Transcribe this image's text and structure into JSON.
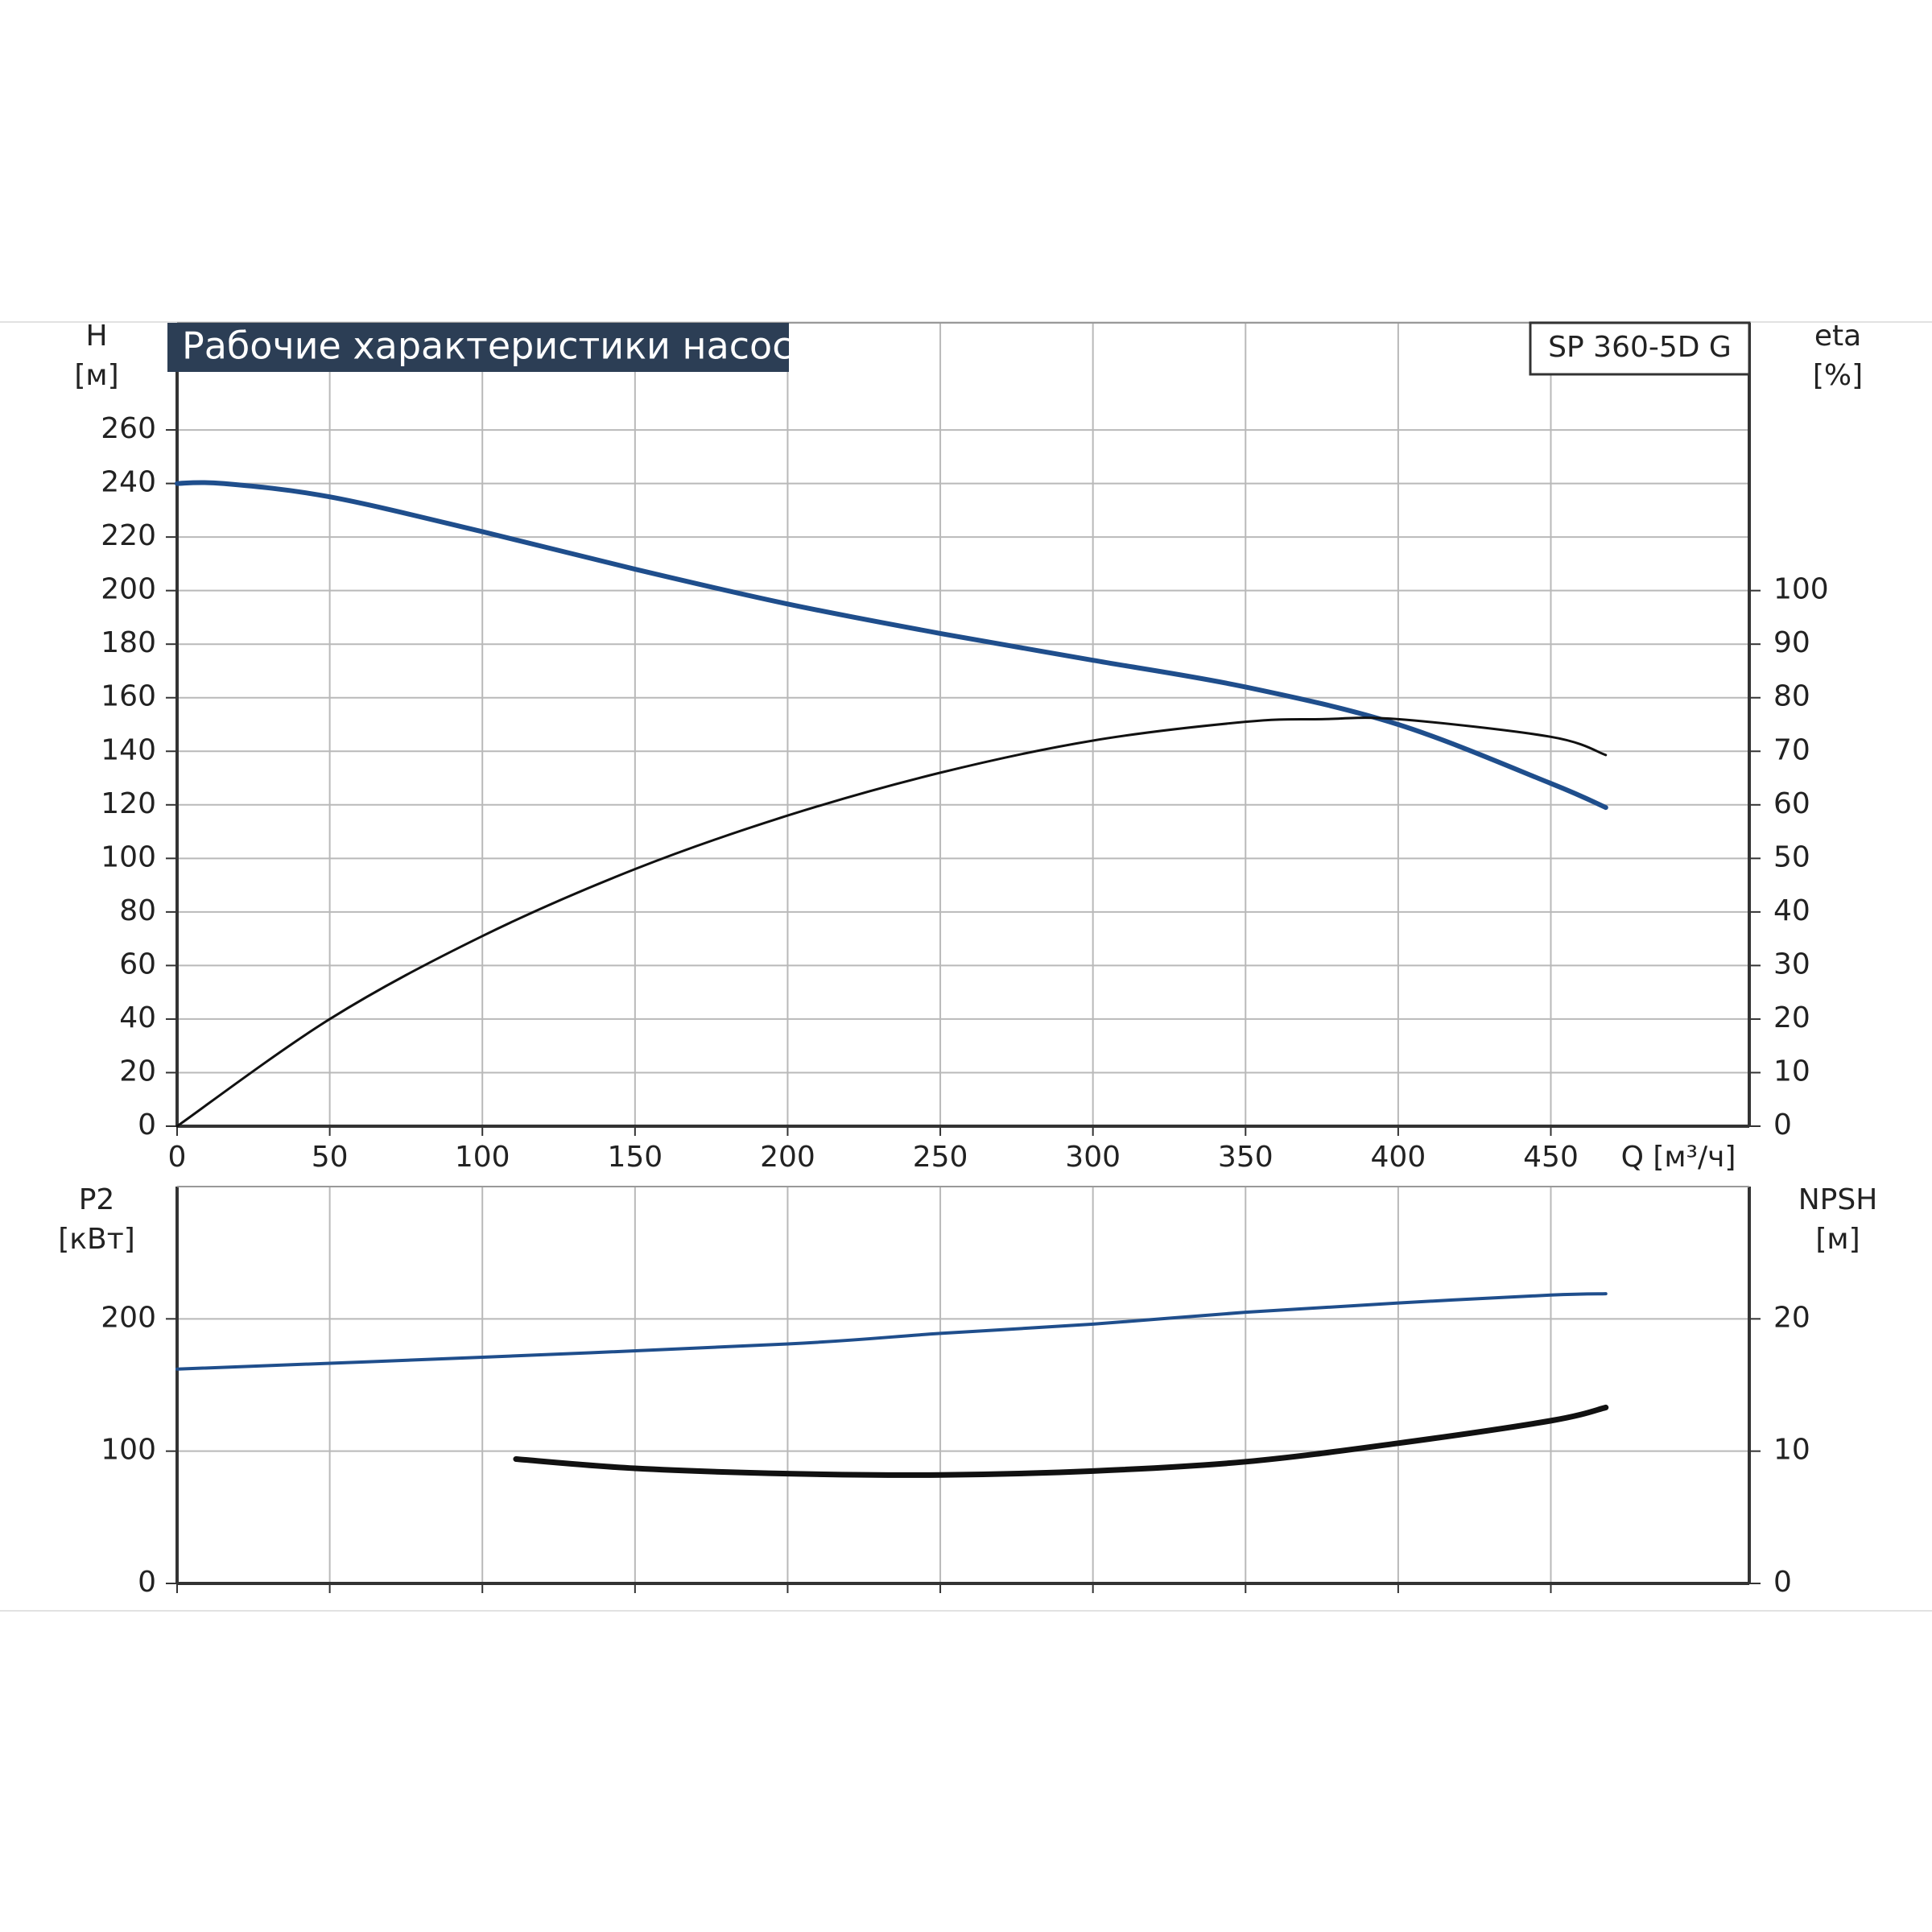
{
  "chart_data": [
    {
      "type": "line",
      "title": "Рабочие характеристики насоса",
      "model": "SP 360-5D G",
      "ylabel": "H",
      "yunit": "[м]",
      "y2label": "eta",
      "y2unit": "[%]",
      "xlabel": "Q [м³/ч]",
      "xlim": [
        0,
        515
      ],
      "xticks": [
        0,
        50,
        100,
        150,
        200,
        250,
        300,
        350,
        400,
        450
      ],
      "show_xtick_labels": true,
      "ylim": [
        0,
        300
      ],
      "yticks": [
        0,
        20,
        40,
        60,
        80,
        100,
        120,
        140,
        160,
        180,
        200,
        220,
        240,
        260
      ],
      "y2lim": [
        0,
        150
      ],
      "y2ticks": [
        0,
        10,
        20,
        30,
        40,
        50,
        60,
        70,
        80,
        90,
        100
      ],
      "grid": true,
      "series": [
        {
          "color": "#1f4e8c",
          "width": 6,
          "x": [
            0,
            15,
            50,
            100,
            150,
            200,
            250,
            300,
            350,
            400,
            450,
            468
          ],
          "values": [
            240,
            240,
            235,
            222,
            208,
            195,
            184,
            174,
            164,
            150,
            128,
            119
          ]
        },
        {
          "color": "#111111",
          "width": 3,
          "axis": "y2",
          "x": [
            0,
            50,
            100,
            150,
            200,
            250,
            300,
            350,
            375,
            400,
            450,
            468
          ],
          "values": [
            0,
            20,
            35.5,
            48,
            58,
            66,
            72,
            75.5,
            76,
            76,
            72.7,
            69.3
          ]
        }
      ]
    },
    {
      "type": "line",
      "ylabel": "P2",
      "yunit": "[кВт]",
      "y2label": "NPSH",
      "y2unit": "[м]",
      "xlim": [
        0,
        515
      ],
      "xticks": [
        0,
        50,
        100,
        150,
        200,
        250,
        300,
        350,
        400,
        450
      ],
      "show_xtick_labels": false,
      "ylim": [
        0,
        300
      ],
      "yticks": [
        0,
        100,
        200
      ],
      "y2lim": [
        0,
        30
      ],
      "y2ticks": [
        0,
        10,
        20
      ],
      "grid": true,
      "series": [
        {
          "color": "#1f4e8c",
          "width": 4,
          "x": [
            0,
            100,
            200,
            250,
            300,
            350,
            400,
            450,
            468
          ],
          "values": [
            162,
            171,
            181,
            189,
            196,
            205,
            212,
            218,
            219
          ]
        },
        {
          "color": "#111111",
          "width": 7,
          "axis": "y2",
          "x": [
            111,
            150,
            200,
            250,
            300,
            350,
            400,
            450,
            468
          ],
          "values": [
            9.4,
            8.7,
            8.3,
            8.2,
            8.5,
            9.2,
            10.6,
            12.3,
            13.3
          ]
        }
      ]
    }
  ]
}
